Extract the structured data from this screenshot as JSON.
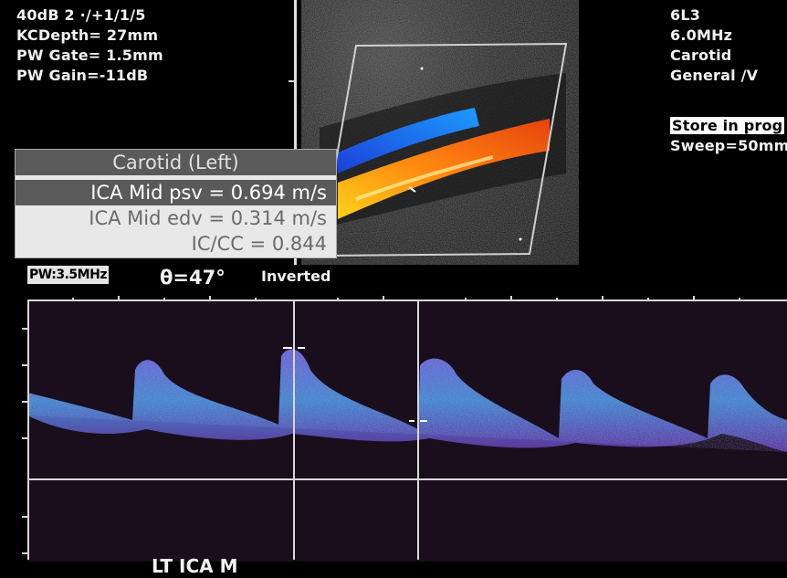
{
  "top_left": {
    "line1": "40dB 2 ·/+1/1/5",
    "line2": "KCDepth= 27mm",
    "line3": "PW Gate= 1.5mm",
    "line4": "PW Gain=-11dB"
  },
  "top_right": {
    "probe": "6L3",
    "frequency": "6.0MHz",
    "preset": "Carotid",
    "mode": "General /V",
    "store": "Store in prog",
    "sweep": "Sweep=50mm"
  },
  "measurements": {
    "title": "Carotid (Left)",
    "rows": [
      "ICA Mid psv = 0.694 m/s",
      "ICA Mid edv = 0.314 m/s",
      "IC/CC = 0.844"
    ],
    "selected_marker": ">"
  },
  "doppler": {
    "pw_label": "PW:3.5MHz",
    "angle": "θ=47°",
    "inverted": "Inverted",
    "vessel_label": "LT ICA M"
  },
  "colors": {
    "flow_blue": "#1c6ef0",
    "flow_red": "#e8420e",
    "flow_yellow": "#ffd21a",
    "spectrum": "#5a6ae0"
  }
}
